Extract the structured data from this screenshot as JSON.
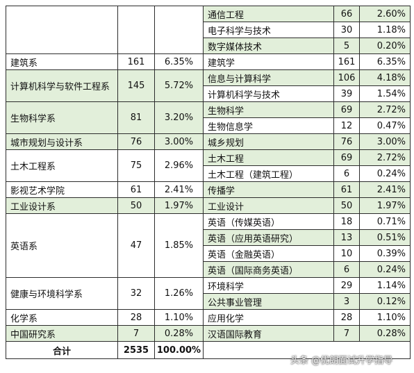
{
  "table": {
    "left_rows": [
      {
        "department": "",
        "count": "",
        "percent": ""
      },
      {
        "department": "建筑系",
        "count": "161",
        "percent": "6.35%"
      },
      {
        "department": "计算机科学与软件工程系",
        "count": "145",
        "percent": "5.72%"
      },
      {
        "department": "生物科学系",
        "count": "81",
        "percent": "3.20%"
      },
      {
        "department": "城市规划与设计系",
        "count": "76",
        "percent": "3.00%"
      },
      {
        "department": "土木工程系",
        "count": "75",
        "percent": "2.96%"
      },
      {
        "department": "影视艺术学院",
        "count": "61",
        "percent": "2.41%"
      },
      {
        "department": "工业设计系",
        "count": "50",
        "percent": "1.97%"
      },
      {
        "department": "英语系",
        "count": "47",
        "percent": "1.85%"
      },
      {
        "department": "健康与环境科学系",
        "count": "32",
        "percent": "1.26%"
      },
      {
        "department": "化学系",
        "count": "28",
        "percent": "1.10%"
      },
      {
        "department": "中国研究系",
        "count": "7",
        "percent": "0.28%"
      }
    ],
    "right_rows": [
      {
        "major": "通信工程",
        "count": "66",
        "percent": "2.60%"
      },
      {
        "major": "电子科学与技术",
        "count": "30",
        "percent": "1.18%"
      },
      {
        "major": "数字媒体技术",
        "count": "5",
        "percent": "0.20%"
      },
      {
        "major": "建筑学",
        "count": "161",
        "percent": "6.35%"
      },
      {
        "major": "信息与计算科学",
        "count": "106",
        "percent": "4.18%"
      },
      {
        "major": "计算机科学与技术",
        "count": "39",
        "percent": "1.54%"
      },
      {
        "major": "生物科学",
        "count": "69",
        "percent": "2.72%"
      },
      {
        "major": "生物信息学",
        "count": "12",
        "percent": "0.47%"
      },
      {
        "major": "城乡规划",
        "count": "76",
        "percent": "3.00%"
      },
      {
        "major": "土木工程",
        "count": "69",
        "percent": "2.72%"
      },
      {
        "major": "土木工程（建筑工程）",
        "count": "6",
        "percent": "0.24%"
      },
      {
        "major": "传播学",
        "count": "61",
        "percent": "2.41%"
      },
      {
        "major": "工业设计",
        "count": "50",
        "percent": "1.97%"
      },
      {
        "major": "英语（传媒英语）",
        "count": "18",
        "percent": "0.71%"
      },
      {
        "major": "英语（应用英语研究）",
        "count": "13",
        "percent": "0.51%"
      },
      {
        "major": "英语（金融英语）",
        "count": "10",
        "percent": "0.39%"
      },
      {
        "major": "英语（国际商务英语）",
        "count": "6",
        "percent": "0.24%"
      },
      {
        "major": "环境科学",
        "count": "29",
        "percent": "1.14%"
      },
      {
        "major": "公共事业管理",
        "count": "3",
        "percent": "0.12%"
      },
      {
        "major": "应用化学",
        "count": "28",
        "percent": "1.10%"
      },
      {
        "major": "汉语国际教育",
        "count": "7",
        "percent": "0.28%"
      }
    ],
    "total": {
      "label": "合计",
      "count": "2535",
      "percent": "100.00%"
    },
    "colors": {
      "green": "#e2efda",
      "white": "#ffffff",
      "border": "#2b2b2b"
    }
  },
  "watermark": {
    "text": "头条 @优朗面试升学指导"
  }
}
